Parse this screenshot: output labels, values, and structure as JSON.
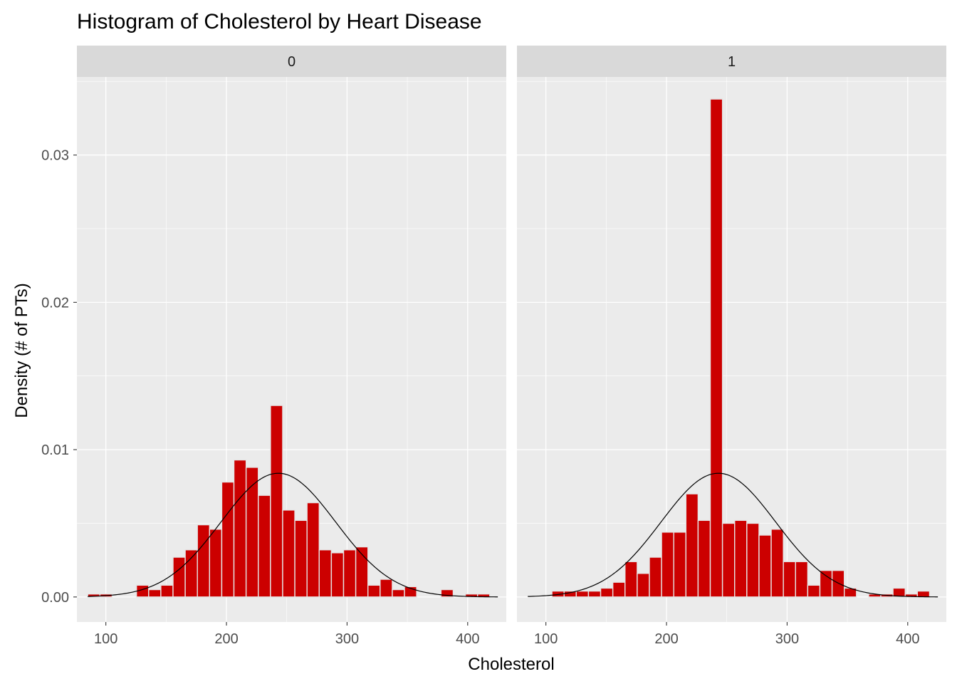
{
  "chart_data": {
    "type": "bar",
    "title": "Histogram of Cholesterol by Heart Disease",
    "xlabel": "Cholesterol",
    "ylabel": "Density (# of PTs)",
    "xlim": [
      76,
      432
    ],
    "ylim": [
      -0.0017,
      0.0353
    ],
    "x_ticks": [
      100,
      200,
      300,
      400
    ],
    "x_tick_labels": [
      "100",
      "200",
      "300",
      "400"
    ],
    "y_ticks": [
      0.0,
      0.01,
      0.02,
      0.03
    ],
    "y_tick_labels": [
      "0.00",
      "0.01",
      "0.02",
      "0.03"
    ],
    "grid": true,
    "bar_color": "#cc0000",
    "bar_edge_color": "#e5e5e5",
    "curve_color": "#000000",
    "panel_background": "#ebebeb",
    "strip_background": "#d9d9d9",
    "bin_width": 10.1,
    "normal_curve": {
      "mean": 243,
      "sd": 47.5,
      "x_range": [
        85,
        425
      ]
    },
    "facets": [
      {
        "label": "0",
        "bin_start": 85,
        "values": [
          0.0002,
          0.0002,
          0,
          0,
          0.0008,
          0.0005,
          0.0008,
          0.0027,
          0.0032,
          0.0049,
          0.0046,
          0.0078,
          0.0093,
          0.0088,
          0.0069,
          0.013,
          0.0059,
          0.0052,
          0.0064,
          0.0032,
          0.003,
          0.0032,
          0.0034,
          0.0008,
          0.0012,
          0.0005,
          0.0007,
          0,
          0,
          0.0005,
          0,
          0.0002,
          0.0002
        ]
      },
      {
        "label": "1",
        "bin_start": 105,
        "values": [
          0.0004,
          0.0004,
          0.0004,
          0.0004,
          0.0006,
          0.001,
          0.0024,
          0.0016,
          0.0027,
          0.0044,
          0.0044,
          0.007,
          0.0052,
          0.0338,
          0.005,
          0.0052,
          0.005,
          0.0042,
          0.0046,
          0.0024,
          0.0024,
          0.0008,
          0.0018,
          0.0018,
          0.0006,
          0,
          0.0002,
          0.0002,
          0.0006,
          0.0002,
          0.0004
        ]
      }
    ]
  }
}
